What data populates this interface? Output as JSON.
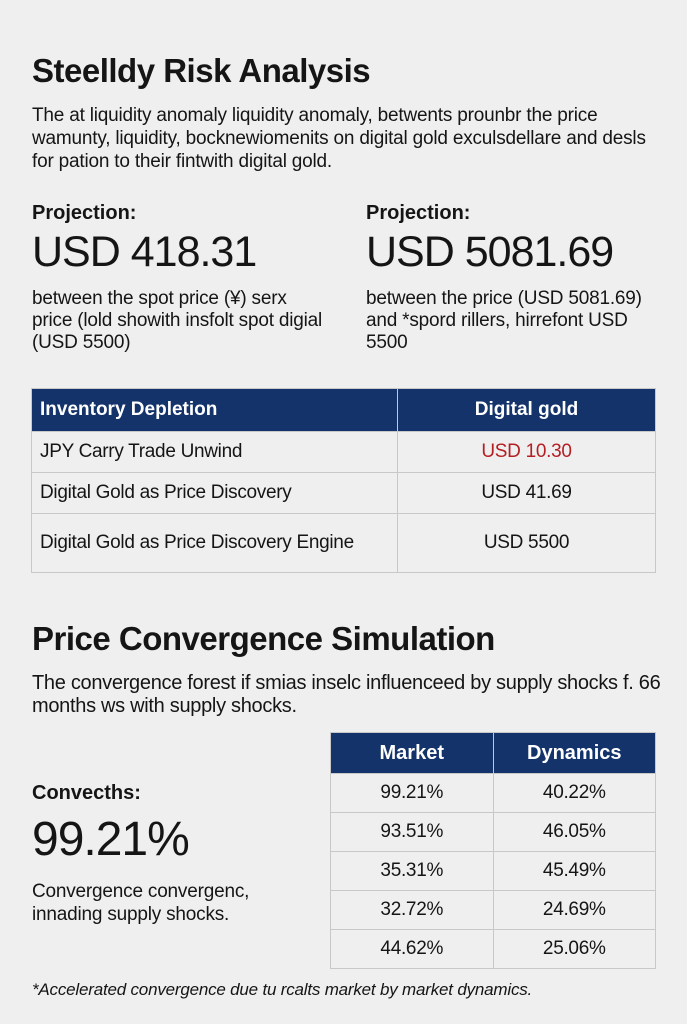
{
  "risk": {
    "title": "Steelldy Risk Analysis",
    "intro": "The at liquidity anomaly liquidity anomaly, betwents prounbr the price wamunty, liquidity, bocknewiomenits on digital gold exculsdellare and desls for pation to their fintwith digital gold."
  },
  "projections": [
    {
      "label": "Projection:",
      "value": "USD 418.31",
      "desc": "between the spot price (¥) serx price (lold showith insfolt spot digial (USD 5500)"
    },
    {
      "label": "Projection:",
      "value": "USD 5081.69",
      "desc": "between the price (USD 5081.69) and *spord rillers, hirrefont USD 5500"
    }
  ],
  "inventory_table": {
    "headers": [
      "Inventory Depletion",
      "Digital gold"
    ],
    "rows": [
      [
        "JPY Carry Trade Unwind",
        "USD 10.30"
      ],
      [
        "Digital Gold as Price Discovery",
        "USD 41.69"
      ],
      [
        "Digital Gold as Price Discovery Engine",
        "USD 5500"
      ]
    ],
    "highlight_color": "#b41f24"
  },
  "simulation": {
    "title": "Price Convergence Simulation",
    "desc": "The convergence forest if smias inselc influenceed by supply shocks f. 66 months ws with supply shocks.",
    "conv_label": "Convecths:",
    "conv_value": "99.21%",
    "conv_desc": "Convergence convergenc, innading supply shocks."
  },
  "market_table": {
    "headers": [
      "Market",
      "Dynamics"
    ],
    "rows": [
      [
        "99.21%",
        "40.22%"
      ],
      [
        "93.51%",
        "46.05%"
      ],
      [
        "35.31%",
        "45.49%"
      ],
      [
        "32.72%",
        "24.69%"
      ],
      [
        "44.62%",
        "25.06%"
      ]
    ]
  },
  "footnote": "*Accelerated convergence due tu rcalts market by market dynamics.",
  "colors": {
    "header_bg": "#14336b",
    "page_bg": "#efefef"
  }
}
